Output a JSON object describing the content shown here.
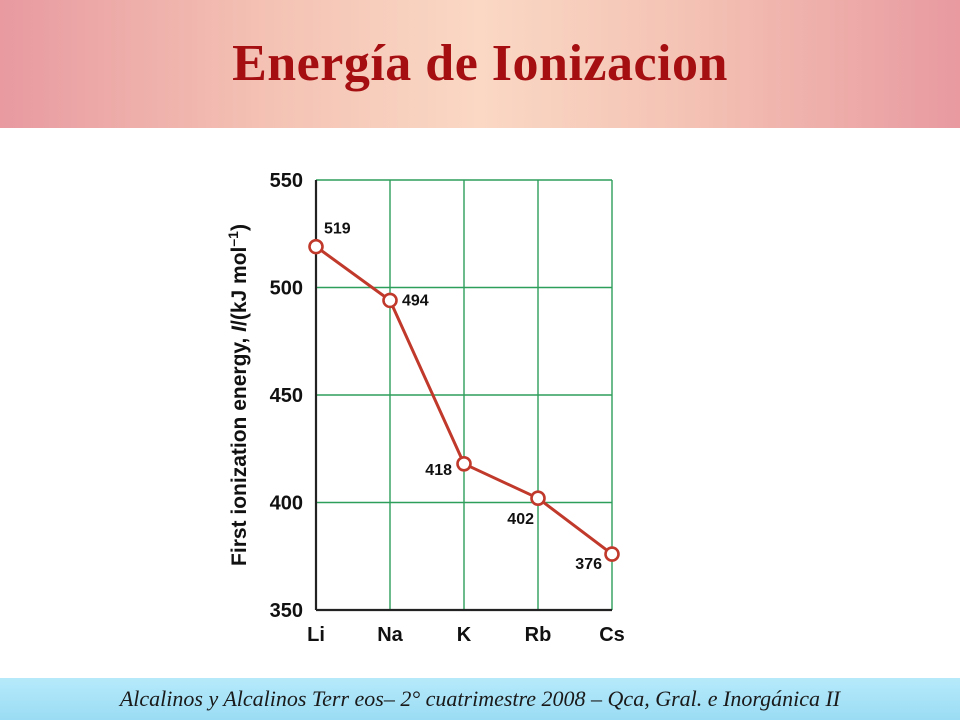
{
  "slide": {
    "title": "Energía de Ionizacion",
    "footer": "Alcalinos y Alcalinos Terr eos– 2° cuatrimestre 2008 – Qca, Gral. e Inorgánica II"
  },
  "colors": {
    "title": "#a50f12",
    "line": "#c0392b",
    "grid": "#2e9e5b",
    "header_mid": "#fad8c4",
    "header_edge": "#e89aa0",
    "footer": "#a8e3f7"
  },
  "chart_data": {
    "type": "line",
    "title": "",
    "categories": [
      "Li",
      "Na",
      "K",
      "Rb",
      "Cs"
    ],
    "values": [
      519,
      494,
      418,
      402,
      376
    ],
    "data_labels": [
      "519",
      "494",
      "418",
      "402",
      "376"
    ],
    "ylabel_prefix": "First ionization energy, ",
    "ylabel_italic": "I",
    "ylabel_suffix": "/(kJ mol",
    "ylabel_sup": "–1",
    "ylabel_close": ")",
    "xlabel": "",
    "ylim": [
      350,
      550
    ],
    "yticks": [
      350,
      400,
      450,
      500,
      550
    ],
    "grid": true,
    "legend": "none"
  }
}
